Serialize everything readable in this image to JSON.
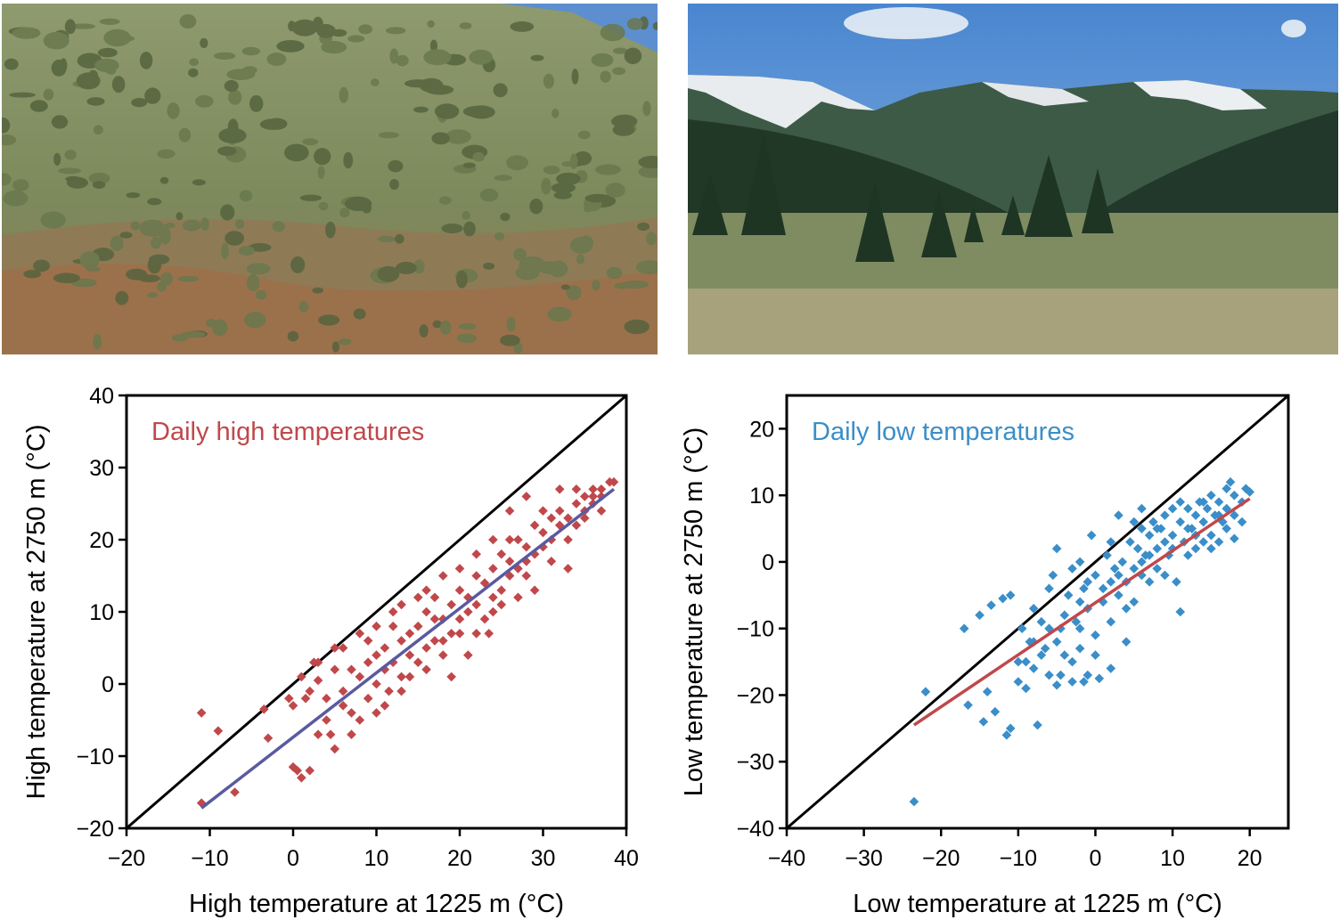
{
  "photos": [
    {
      "name": "sagebrush-hillside-photo"
    },
    {
      "name": "mountain-meadow-photo"
    }
  ],
  "chart_data": [
    {
      "type": "scatter",
      "title": "Daily high temperatures",
      "xlabel": "High temperature at 1225 m (°C)",
      "ylabel": "High temperature at 2750 m (°C)",
      "xlim": [
        -20,
        40
      ],
      "ylim": [
        -20,
        40
      ],
      "xticks": [
        -20,
        -10,
        0,
        10,
        20,
        30,
        40
      ],
      "yticks": [
        -20,
        -10,
        0,
        10,
        20,
        30,
        40
      ],
      "x_tick_labels": [
        "−20",
        "−10",
        "0",
        "10",
        "20",
        "30",
        "40"
      ],
      "y_tick_labels": [
        "−20",
        "−10",
        "0",
        "10",
        "20",
        "30",
        "40"
      ],
      "grid": false,
      "marker_color": "#c0484b",
      "title_color": "#c0484b",
      "reference_line": {
        "x": [
          -20,
          40
        ],
        "y": [
          -20,
          40
        ],
        "color": "#000000"
      },
      "fit_line": {
        "x": [
          -11,
          38.5
        ],
        "y": [
          -17.2,
          27
        ],
        "color": "#5a5aa0"
      },
      "series": [
        {
          "values": [
            [
              -11,
              -16.5
            ],
            [
              -11,
              -4
            ],
            [
              -9,
              -6.5
            ],
            [
              -7,
              -15
            ],
            [
              -3.5,
              -3.5
            ],
            [
              -3,
              -7.5
            ],
            [
              -0.5,
              -2
            ],
            [
              0,
              -3
            ],
            [
              0,
              -11.5
            ],
            [
              0.5,
              -12
            ],
            [
              1,
              -13
            ],
            [
              1.5,
              -2
            ],
            [
              2,
              -12
            ],
            [
              2.5,
              3
            ],
            [
              3,
              0.5
            ],
            [
              4,
              -2
            ],
            [
              4.5,
              -7
            ],
            [
              5,
              -9
            ],
            [
              5,
              5
            ],
            [
              6,
              -1
            ],
            [
              6,
              -3
            ],
            [
              7,
              2
            ],
            [
              7,
              -4
            ],
            [
              8,
              1
            ],
            [
              8,
              -5
            ],
            [
              9,
              3
            ],
            [
              9,
              -2
            ],
            [
              10,
              4
            ],
            [
              10,
              0
            ],
            [
              11,
              5
            ],
            [
              11,
              2
            ],
            [
              11.5,
              -1
            ],
            [
              12,
              8
            ],
            [
              12,
              3
            ],
            [
              13,
              6
            ],
            [
              13,
              1
            ],
            [
              14,
              7
            ],
            [
              14,
              4
            ],
            [
              15,
              8
            ],
            [
              15,
              3
            ],
            [
              16,
              10
            ],
            [
              16,
              5
            ],
            [
              17,
              12
            ],
            [
              17,
              6
            ],
            [
              18,
              9
            ],
            [
              18,
              4
            ],
            [
              19,
              11
            ],
            [
              19,
              7
            ],
            [
              20,
              13
            ],
            [
              20,
              9
            ],
            [
              21,
              12
            ],
            [
              21,
              10
            ],
            [
              22,
              15
            ],
            [
              22,
              11
            ],
            [
              23,
              14
            ],
            [
              23,
              9
            ],
            [
              24,
              16
            ],
            [
              24,
              12
            ],
            [
              25,
              18
            ],
            [
              25,
              13
            ],
            [
              26,
              17
            ],
            [
              26,
              15
            ],
            [
              27,
              20
            ],
            [
              27,
              16
            ],
            [
              28,
              19
            ],
            [
              28,
              17
            ],
            [
              29,
              22
            ],
            [
              29,
              18
            ],
            [
              30,
              21
            ],
            [
              30,
              19
            ],
            [
              31,
              23
            ],
            [
              31,
              20
            ],
            [
              32,
              24
            ],
            [
              32,
              22
            ],
            [
              33,
              23
            ],
            [
              33,
              16
            ],
            [
              34,
              25
            ],
            [
              34,
              22
            ],
            [
              35,
              26
            ],
            [
              35,
              24
            ],
            [
              36,
              26
            ],
            [
              36,
              25
            ],
            [
              37,
              27
            ],
            [
              37,
              26
            ],
            [
              38,
              28
            ],
            [
              38.5,
              28
            ],
            [
              23.5,
              7
            ],
            [
              21,
              4
            ],
            [
              19,
              1
            ],
            [
              26,
              24
            ],
            [
              28,
              26
            ],
            [
              32,
              27
            ],
            [
              18,
              15
            ],
            [
              15,
              12
            ],
            [
              13,
              11
            ],
            [
              10,
              8
            ],
            [
              8,
              7
            ],
            [
              6,
              5
            ],
            [
              3,
              3
            ],
            [
              1,
              1
            ],
            [
              24,
              20
            ],
            [
              30,
              24
            ],
            [
              26,
              20
            ],
            [
              20,
              16
            ],
            [
              16,
              13
            ],
            [
              12,
              10
            ],
            [
              9,
              6
            ],
            [
              5,
              2
            ],
            [
              2,
              -1
            ],
            [
              34,
              27
            ],
            [
              36,
              27
            ],
            [
              22,
              18
            ],
            [
              17,
              9
            ],
            [
              14,
              1
            ],
            [
              11,
              -3
            ],
            [
              7,
              -7
            ],
            [
              4,
              -5
            ],
            [
              31,
              17
            ],
            [
              29,
              13
            ],
            [
              25,
              11
            ],
            [
              27,
              12
            ],
            [
              20,
              7
            ],
            [
              18,
              6
            ],
            [
              13,
              -1
            ],
            [
              10,
              -4
            ],
            [
              3,
              -7
            ],
            [
              16,
              2
            ],
            [
              22,
              7
            ],
            [
              24,
              10
            ],
            [
              28,
              15
            ],
            [
              33,
              20
            ],
            [
              37,
              24
            ],
            [
              35,
              23
            ]
          ]
        }
      ]
    },
    {
      "type": "scatter",
      "title": "Daily low temperatures",
      "xlabel": "Low temperature at 1225 m (°C)",
      "ylabel": "Low temperature at 2750 m (°C)",
      "xlim": [
        -40,
        25
      ],
      "ylim": [
        -40,
        25
      ],
      "xticks": [
        -40,
        -30,
        -20,
        -10,
        0,
        10,
        20
      ],
      "yticks": [
        -40,
        -30,
        -20,
        -10,
        0,
        10,
        20
      ],
      "x_tick_labels": [
        "−40",
        "−30",
        "−20",
        "−10",
        "0",
        "10",
        "20"
      ],
      "y_tick_labels": [
        "−40",
        "−30",
        "−20",
        "−10",
        "0",
        "10",
        "20"
      ],
      "grid": false,
      "marker_color": "#3a8ec9",
      "title_color": "#3a8ec9",
      "reference_line": {
        "x": [
          -40,
          25
        ],
        "y": [
          -40,
          25
        ],
        "color": "#000000"
      },
      "fit_line": {
        "x": [
          -23.5,
          20
        ],
        "y": [
          -24.5,
          9.5
        ],
        "color": "#c0484b"
      },
      "series": [
        {
          "values": [
            [
              -23.5,
              -36
            ],
            [
              -22,
              -19.5
            ],
            [
              -17,
              -10
            ],
            [
              -16.5,
              -21.5
            ],
            [
              -15,
              -8
            ],
            [
              -14.5,
              -24
            ],
            [
              -14,
              -19.5
            ],
            [
              -13.5,
              -6.5
            ],
            [
              -13,
              -22.5
            ],
            [
              -12,
              -5.5
            ],
            [
              -11.5,
              -26
            ],
            [
              -11,
              -5
            ],
            [
              -11,
              -25
            ],
            [
              -10,
              -15
            ],
            [
              -9.5,
              -10
            ],
            [
              -9,
              -19
            ],
            [
              -8.5,
              -12
            ],
            [
              -8,
              -16
            ],
            [
              -7.5,
              -24.5
            ],
            [
              -7,
              -9
            ],
            [
              -6.5,
              -13
            ],
            [
              -6,
              -17
            ],
            [
              -5.5,
              -2
            ],
            [
              -5,
              -18.5
            ],
            [
              -5,
              2
            ],
            [
              -4.5,
              -10
            ],
            [
              -4,
              -14
            ],
            [
              -3.5,
              -5
            ],
            [
              -3,
              -18
            ],
            [
              -3,
              -1
            ],
            [
              -2.5,
              -9
            ],
            [
              -2,
              -13
            ],
            [
              -1.5,
              -4
            ],
            [
              -1,
              -17
            ],
            [
              -1,
              -7
            ],
            [
              -0.5,
              4
            ],
            [
              0,
              -2
            ],
            [
              0,
              -11
            ],
            [
              0.5,
              -17.5
            ],
            [
              1,
              -6
            ],
            [
              1.5,
              1
            ],
            [
              2,
              -3
            ],
            [
              2,
              -9
            ],
            [
              2.5,
              -1
            ],
            [
              3,
              -5
            ],
            [
              3,
              7
            ],
            [
              3.5,
              0
            ],
            [
              4,
              -3
            ],
            [
              4.5,
              3
            ],
            [
              5,
              -1
            ],
            [
              5,
              -6
            ],
            [
              5.5,
              2
            ],
            [
              6,
              5
            ],
            [
              6,
              -2
            ],
            [
              6.5,
              1
            ],
            [
              7,
              4
            ],
            [
              7,
              -3
            ],
            [
              7.5,
              6
            ],
            [
              8,
              2
            ],
            [
              8,
              -1
            ],
            [
              8.5,
              5
            ],
            [
              9,
              3
            ],
            [
              9,
              7
            ],
            [
              9.5,
              1
            ],
            [
              10,
              4
            ],
            [
              10,
              8
            ],
            [
              10.5,
              -3
            ],
            [
              11,
              6
            ],
            [
              11,
              -7.5
            ],
            [
              11.5,
              3
            ],
            [
              12,
              8
            ],
            [
              12.5,
              5
            ],
            [
              13,
              7
            ],
            [
              13,
              2
            ],
            [
              13.5,
              9
            ],
            [
              14,
              6
            ],
            [
              14,
              3
            ],
            [
              14.5,
              8
            ],
            [
              15,
              4
            ],
            [
              15,
              10
            ],
            [
              15.5,
              7
            ],
            [
              16,
              9
            ],
            [
              16,
              3
            ],
            [
              16.5,
              6
            ],
            [
              17,
              11
            ],
            [
              17,
              8
            ],
            [
              17.5,
              12
            ],
            [
              18,
              10
            ],
            [
              18,
              3.5
            ],
            [
              19,
              9
            ],
            [
              19.5,
              11
            ],
            [
              20,
              10.5
            ],
            [
              -8,
              -7
            ],
            [
              -6,
              -10
            ],
            [
              -4,
              -8
            ],
            [
              -2,
              -6
            ],
            [
              -1,
              -3
            ],
            [
              1,
              -4
            ],
            [
              3,
              -2
            ],
            [
              4,
              -7
            ],
            [
              6,
              0
            ],
            [
              8,
              5
            ],
            [
              10,
              2
            ],
            [
              12,
              1
            ],
            [
              -7,
              -14
            ],
            [
              -5,
              -12
            ],
            [
              -3,
              -15
            ],
            [
              -2,
              -10
            ],
            [
              0,
              -14
            ],
            [
              2,
              -16
            ],
            [
              4,
              -12
            ],
            [
              -9,
              -15
            ],
            [
              -4.5,
              -17
            ],
            [
              -1.5,
              -18
            ],
            [
              12,
              5
            ],
            [
              14,
              9
            ],
            [
              16,
              7
            ],
            [
              9,
              -2
            ],
            [
              7,
              1
            ],
            [
              5,
              6
            ],
            [
              -2,
              0
            ],
            [
              -6,
              -4
            ],
            [
              11,
              9
            ],
            [
              13,
              4
            ],
            [
              15,
              2
            ],
            [
              17,
              5
            ],
            [
              18,
              7
            ],
            [
              19,
              6
            ],
            [
              6,
              8
            ],
            [
              2,
              3
            ],
            [
              -8,
              -12
            ],
            [
              -10,
              -18
            ]
          ]
        }
      ]
    }
  ]
}
